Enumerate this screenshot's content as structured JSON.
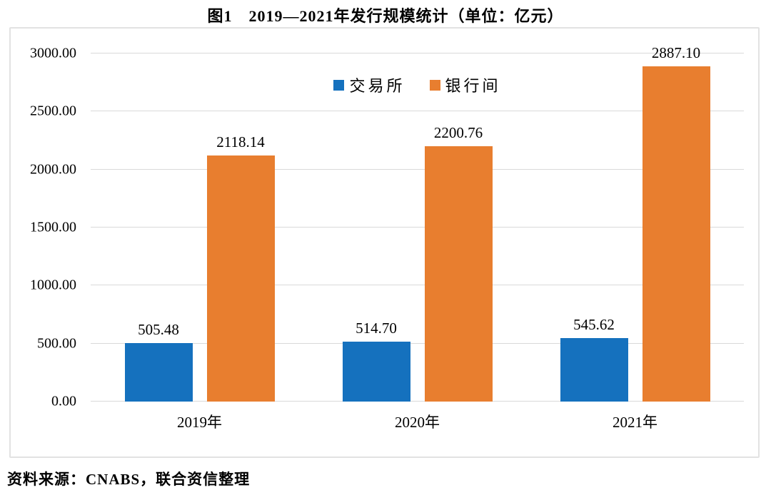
{
  "title": "图1　2019—2021年发行规模统计（单位：亿元）",
  "source_note": "资料来源：CNABS，联合资信整理",
  "colors": {
    "exchange_blue": "#1571BE",
    "interbank_orange": "#E87E2F",
    "gridline": "#d9d9d9",
    "chart_border": "#e2e2e2"
  },
  "chart_data": {
    "type": "bar",
    "title": "图1　2019—2021年发行规模统计（单位：亿元）",
    "unit": "亿元",
    "categories": [
      "2019年",
      "2020年",
      "2021年"
    ],
    "series": [
      {
        "name": "交易所",
        "color": "#1571BE",
        "values": [
          505.48,
          514.7,
          545.62
        ]
      },
      {
        "name": "银行间",
        "color": "#E87E2F",
        "values": [
          2118.14,
          2200.76,
          2887.1
        ]
      }
    ],
    "value_label_decimals": 2,
    "ylim": [
      0,
      3000
    ],
    "ytick_step": 500,
    "ytick_label_decimals": 2,
    "grid": true,
    "legend_position": "top-center",
    "xlabel": "",
    "ylabel": ""
  }
}
